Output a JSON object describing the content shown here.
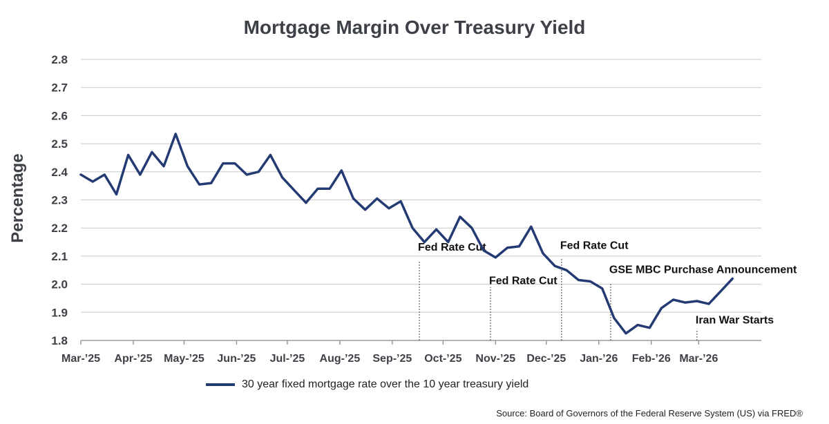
{
  "chart_data": {
    "type": "line",
    "title": "Mortgage Margin Over Treasury Yield",
    "ylabel": "Percentage",
    "xlabel": "",
    "ylim": [
      1.8,
      2.8
    ],
    "yticks": [
      1.8,
      1.9,
      2.0,
      2.1,
      2.2,
      2.3,
      2.4,
      2.5,
      2.6,
      2.7,
      2.8
    ],
    "xlim": [
      "2025-03-01",
      "2026-04-07"
    ],
    "xticks": [
      {
        "date": "2025-03-01",
        "label": "Mar-’25"
      },
      {
        "date": "2025-04-01",
        "label": "Apr-’25"
      },
      {
        "date": "2025-05-01",
        "label": "May-’25"
      },
      {
        "date": "2025-06-01",
        "label": "Jun-’25"
      },
      {
        "date": "2025-07-01",
        "label": "Jul-’25"
      },
      {
        "date": "2025-08-01",
        "label": "Aug-’25"
      },
      {
        "date": "2025-09-01",
        "label": "Sep-’25"
      },
      {
        "date": "2025-10-01",
        "label": "Oct-’25"
      },
      {
        "date": "2025-11-01",
        "label": "Nov-’25"
      },
      {
        "date": "2025-12-01",
        "label": "Dec-’25"
      },
      {
        "date": "2026-01-01",
        "label": "Jan-’26"
      },
      {
        "date": "2026-02-01",
        "label": "Feb-’26"
      },
      {
        "date": "2026-03-01",
        "label": "Mar-’26"
      }
    ],
    "grid": true,
    "series": [
      {
        "name": "30 year fixed mortgage rate over the 10 year treasury yield",
        "color": "#243a73",
        "points": [
          {
            "x": "2025-03-01",
            "y": 2.39
          },
          {
            "x": "2025-03-08",
            "y": 2.365
          },
          {
            "x": "2025-03-15",
            "y": 2.39
          },
          {
            "x": "2025-03-22",
            "y": 2.32
          },
          {
            "x": "2025-03-29",
            "y": 2.46
          },
          {
            "x": "2025-04-05",
            "y": 2.39
          },
          {
            "x": "2025-04-12",
            "y": 2.47
          },
          {
            "x": "2025-04-19",
            "y": 2.42
          },
          {
            "x": "2025-04-26",
            "y": 2.535
          },
          {
            "x": "2025-05-03",
            "y": 2.42
          },
          {
            "x": "2025-05-10",
            "y": 2.355
          },
          {
            "x": "2025-05-17",
            "y": 2.36
          },
          {
            "x": "2025-05-24",
            "y": 2.43
          },
          {
            "x": "2025-05-31",
            "y": 2.43
          },
          {
            "x": "2025-06-07",
            "y": 2.39
          },
          {
            "x": "2025-06-14",
            "y": 2.4
          },
          {
            "x": "2025-06-21",
            "y": 2.46
          },
          {
            "x": "2025-06-28",
            "y": 2.38
          },
          {
            "x": "2025-07-05",
            "y": 2.335
          },
          {
            "x": "2025-07-12",
            "y": 2.29
          },
          {
            "x": "2025-07-19",
            "y": 2.34
          },
          {
            "x": "2025-07-26",
            "y": 2.34
          },
          {
            "x": "2025-08-02",
            "y": 2.405
          },
          {
            "x": "2025-08-09",
            "y": 2.305
          },
          {
            "x": "2025-08-16",
            "y": 2.265
          },
          {
            "x": "2025-08-23",
            "y": 2.305
          },
          {
            "x": "2025-08-30",
            "y": 2.27
          },
          {
            "x": "2025-09-06",
            "y": 2.295
          },
          {
            "x": "2025-09-13",
            "y": 2.2
          },
          {
            "x": "2025-09-20",
            "y": 2.15
          },
          {
            "x": "2025-09-27",
            "y": 2.195
          },
          {
            "x": "2025-10-04",
            "y": 2.15
          },
          {
            "x": "2025-10-11",
            "y": 2.24
          },
          {
            "x": "2025-10-18",
            "y": 2.2
          },
          {
            "x": "2025-10-25",
            "y": 2.12
          },
          {
            "x": "2025-11-01",
            "y": 2.095
          },
          {
            "x": "2025-11-08",
            "y": 2.13
          },
          {
            "x": "2025-11-15",
            "y": 2.135
          },
          {
            "x": "2025-11-22",
            "y": 2.205
          },
          {
            "x": "2025-11-29",
            "y": 2.11
          },
          {
            "x": "2025-12-06",
            "y": 2.065
          },
          {
            "x": "2025-12-13",
            "y": 2.05
          },
          {
            "x": "2025-12-20",
            "y": 2.015
          },
          {
            "x": "2025-12-27",
            "y": 2.01
          },
          {
            "x": "2026-01-03",
            "y": 1.985
          },
          {
            "x": "2026-01-10",
            "y": 1.88
          },
          {
            "x": "2026-01-17",
            "y": 1.825
          },
          {
            "x": "2026-01-24",
            "y": 1.855
          },
          {
            "x": "2026-01-31",
            "y": 1.845
          },
          {
            "x": "2026-02-07",
            "y": 1.915
          },
          {
            "x": "2026-02-14",
            "y": 1.945
          },
          {
            "x": "2026-02-21",
            "y": 1.935
          },
          {
            "x": "2026-02-28",
            "y": 1.94
          },
          {
            "x": "2026-03-07",
            "y": 1.93
          },
          {
            "x": "2026-03-14",
            "y": 1.975
          },
          {
            "x": "2026-03-21",
            "y": 2.02
          }
        ]
      }
    ],
    "annotations": [
      {
        "text": "Fed Rate Cut",
        "date": "2025-09-17",
        "label_y": 2.12,
        "line_from": 1.8,
        "line_to": 2.085
      },
      {
        "text": "Fed Rate Cut",
        "date": "2025-10-29",
        "label_y": 2.0,
        "line_from": 1.8,
        "line_to": 1.99
      },
      {
        "text": "Fed Rate Cut",
        "date": "2025-12-10",
        "label_y": 2.125,
        "line_from": 1.8,
        "line_to": 2.09
      },
      {
        "text": "GSE MBC Purchase Announcement",
        "date": "2026-01-08",
        "label_y": 2.04,
        "line_from": 1.8,
        "line_to": 2.005
      },
      {
        "text": "Iran War Starts",
        "date": "2026-02-28",
        "label_y": 1.86,
        "line_from": 1.8,
        "line_to": 1.84
      }
    ],
    "legend": {
      "position": "bottom-center",
      "label": "30 year fixed mortgage rate over the 10 year treasury yield"
    },
    "source": "Source: Board of Governors of the Federal Reserve System (US) via FRED®"
  }
}
